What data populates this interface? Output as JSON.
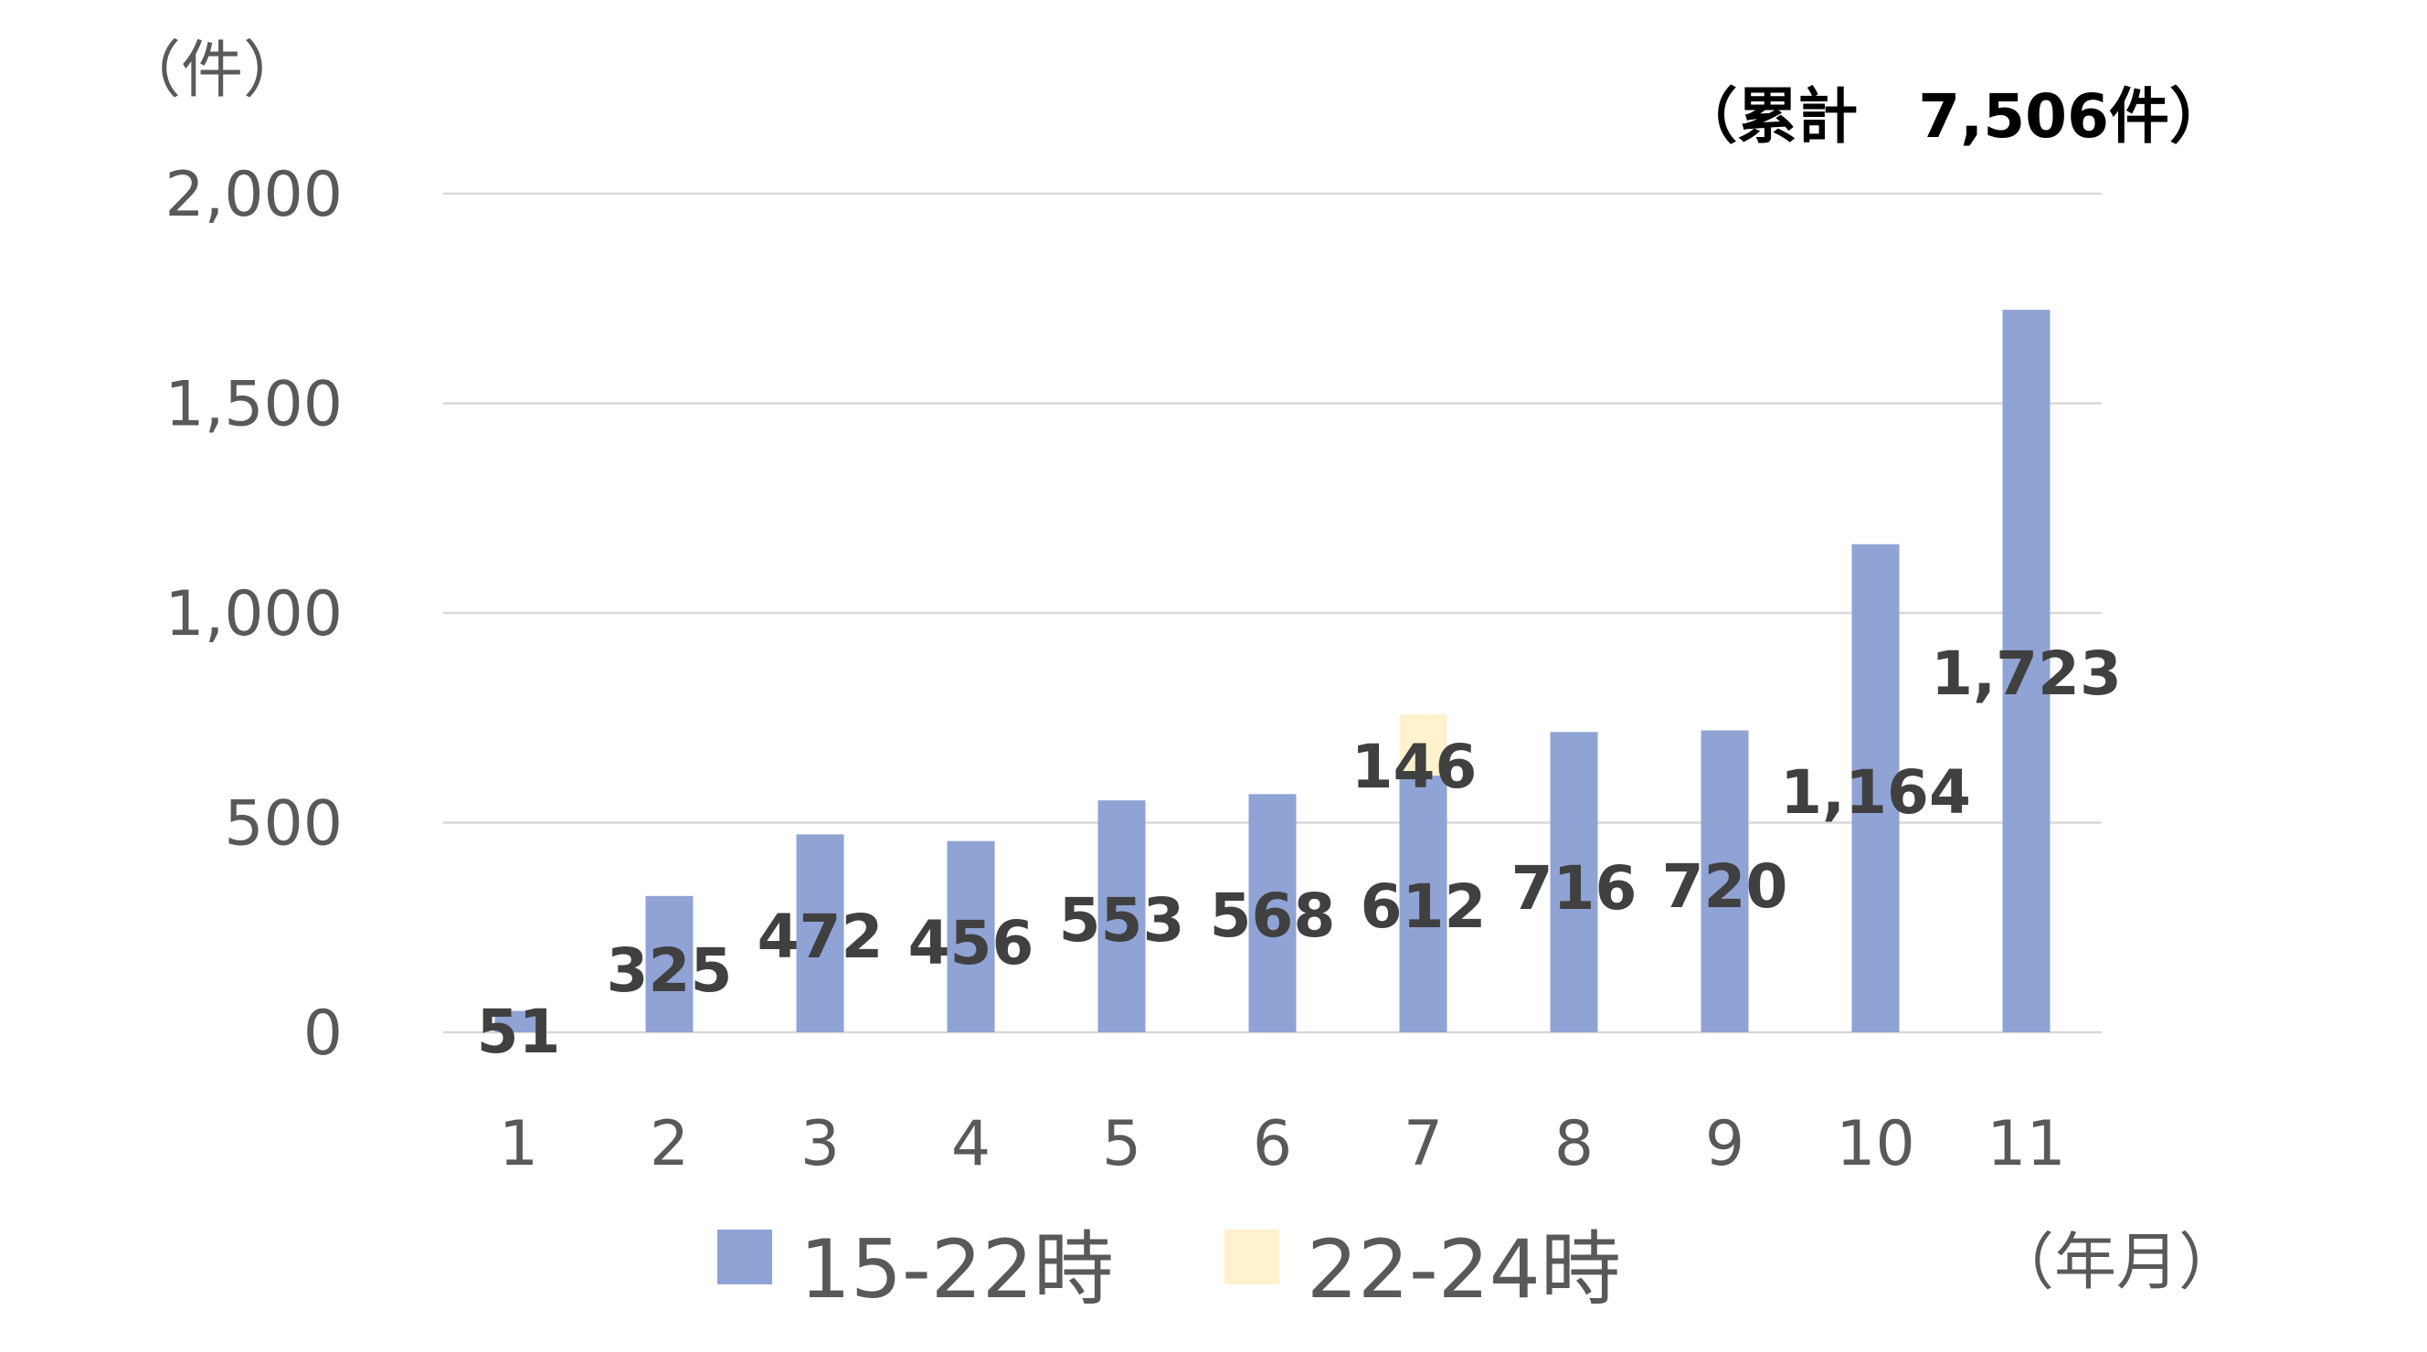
{
  "chart_data": {
    "type": "bar",
    "stacked": true,
    "categories": [
      "1",
      "2",
      "3",
      "4",
      "5",
      "6",
      "7",
      "8",
      "9",
      "10",
      "11"
    ],
    "series": [
      {
        "name": "15-22時",
        "color": "#8fa3d4",
        "values": [
          51,
          325,
          472,
          456,
          553,
          568,
          612,
          716,
          720,
          1164,
          1723
        ],
        "labels": [
          "51",
          "325",
          "472",
          "456",
          "553",
          "568",
          "612",
          "716",
          "720",
          "1,164",
          "1,723"
        ]
      },
      {
        "name": "22-24時",
        "color": "#fff2cc",
        "values": [
          0,
          0,
          0,
          0,
          0,
          0,
          146,
          0,
          0,
          0,
          0
        ],
        "labels": [
          "",
          "",
          "",
          "",
          "",
          "",
          "146",
          "",
          "",
          "",
          ""
        ]
      }
    ],
    "ylim": [
      0,
      2000
    ],
    "yticks": [
      0,
      500,
      1000,
      1500,
      2000
    ],
    "ytick_labels": [
      "0",
      "500",
      "1,000",
      "1,500",
      "2,000"
    ],
    "ylabel": "（件）",
    "xlabel": "（年月）",
    "grid": true,
    "legend_position": "bottom",
    "annotation": "（累計　7,506件）"
  }
}
